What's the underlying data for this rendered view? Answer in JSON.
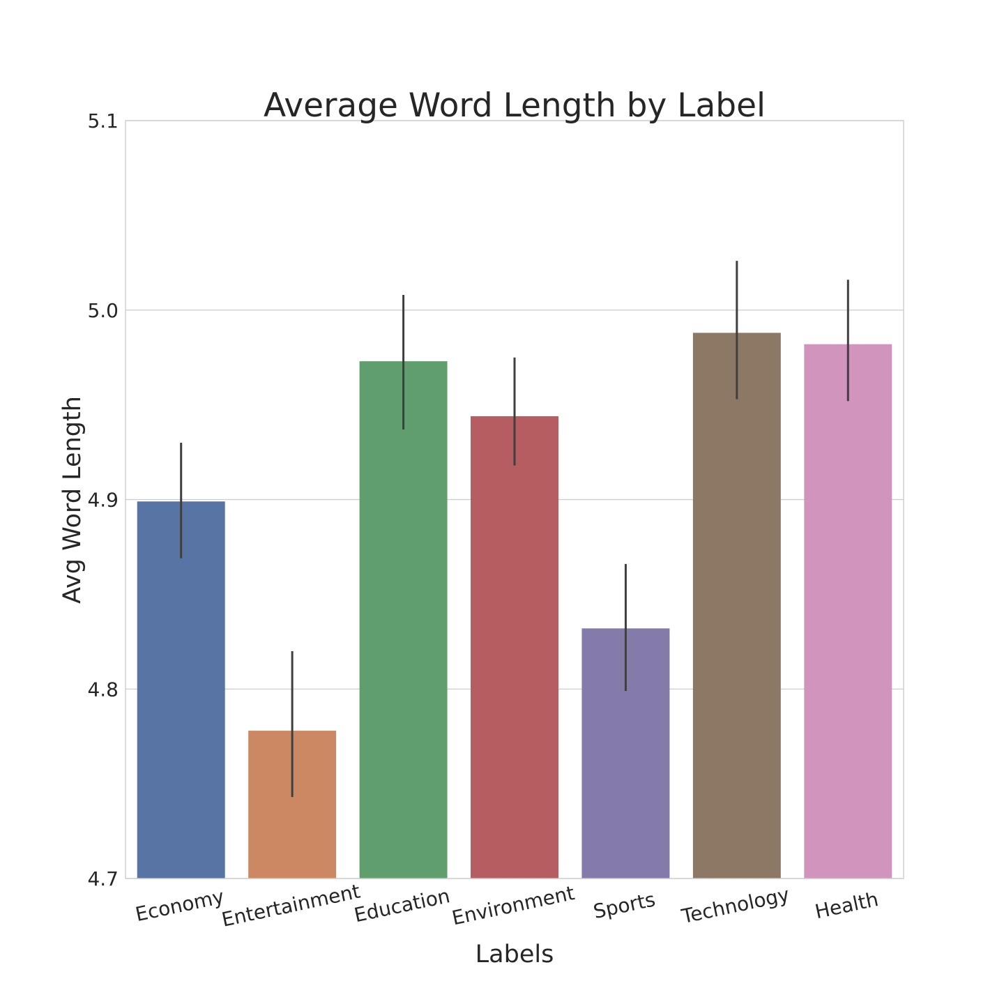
{
  "chart_data": {
    "type": "bar",
    "title": "Average Word Length by Label",
    "xlabel": "Labels",
    "ylabel": "Avg Word Length",
    "categories": [
      "Economy",
      "Entertainment",
      "Education",
      "Environment",
      "Sports",
      "Technology",
      "Health"
    ],
    "values": [
      4.899,
      4.778,
      4.973,
      4.944,
      4.832,
      4.988,
      4.982
    ],
    "error_low": [
      4.869,
      4.743,
      4.937,
      4.918,
      4.799,
      4.953,
      4.952
    ],
    "error_high": [
      4.93,
      4.82,
      5.008,
      4.975,
      4.866,
      5.026,
      5.016
    ],
    "colors": [
      "#5874a4",
      "#cc8862",
      "#609e6e",
      "#b55d60",
      "#857baa",
      "#8c7865",
      "#d094bd"
    ],
    "ylim": [
      4.7,
      5.1
    ],
    "yticks": [
      "4.7",
      "4.8",
      "4.9",
      "5.0",
      "5.1"
    ],
    "grid": true,
    "legend": "none"
  }
}
